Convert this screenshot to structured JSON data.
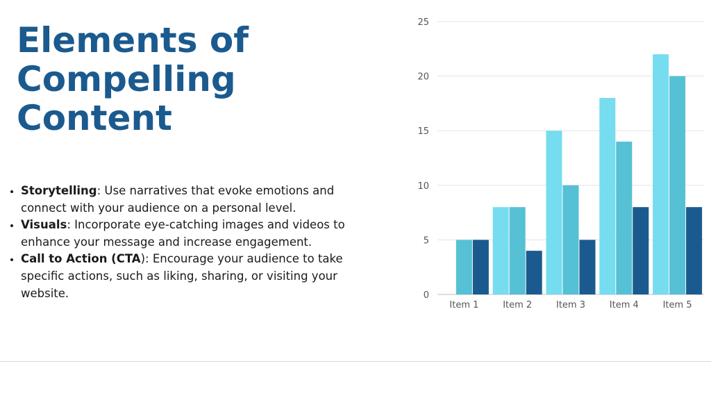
{
  "slide": {
    "title": "Elements of Compelling Content",
    "bullets": [
      {
        "term": "Storytelling",
        "text": ": Use narratives that evoke emotions and connect with your audience on a personal level."
      },
      {
        "term": "Visuals",
        "text": ": Incorporate eye-catching images and videos to enhance your message and increase engagement."
      },
      {
        "term": "Call to Action (CTA",
        "text": "): Encourage your audience to take specific actions, such as liking, sharing, or visiting your website."
      }
    ]
  },
  "chart_data": {
    "type": "bar",
    "categories": [
      "Item 1",
      "Item 2",
      "Item 3",
      "Item 4",
      "Item 5"
    ],
    "series": [
      {
        "values": [
          0,
          8,
          15,
          18,
          22
        ],
        "color": "#76dcef"
      },
      {
        "values": [
          5,
          8,
          10,
          14,
          20
        ],
        "color": "#56c0d4"
      },
      {
        "values": [
          5,
          4,
          5,
          8,
          8
        ],
        "color": "#1b5a8e"
      }
    ],
    "ylim": [
      0,
      25
    ],
    "yticks": [
      0,
      5,
      10,
      15,
      20,
      25
    ],
    "grid": true,
    "legend": "none"
  }
}
